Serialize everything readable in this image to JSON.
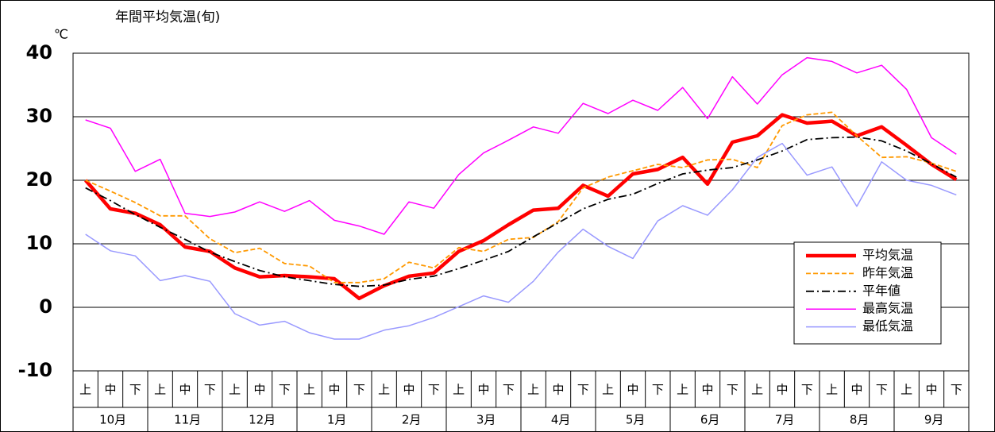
{
  "chart_data": {
    "type": "line",
    "title": "年間平均気温(旬)",
    "y_unit": "℃",
    "categories": [
      "上",
      "中",
      "下",
      "上",
      "中",
      "下",
      "上",
      "中",
      "下",
      "上",
      "中",
      "下",
      "上",
      "中",
      "下",
      "上",
      "中",
      "下",
      "上",
      "中",
      "下",
      "上",
      "中",
      "下",
      "上",
      "中",
      "下",
      "上",
      "中",
      "下",
      "上",
      "中",
      "下",
      "上",
      "中",
      "下"
    ],
    "groups": [
      "10月",
      "11月",
      "12月",
      "1月",
      "2月",
      "3月",
      "4月",
      "5月",
      "6月",
      "7月",
      "8月",
      "9月"
    ],
    "ylim": [
      -10,
      40
    ],
    "yticks": [
      -10,
      0,
      10,
      20,
      30,
      40
    ],
    "grid": true,
    "legend": "lower right",
    "series": [
      {
        "name": "平均気温",
        "color": "#ff0000",
        "linewidth": 4.5,
        "dash": "solid",
        "values": [
          20,
          15.5,
          14.8,
          13,
          9.5,
          8.8,
          6.2,
          4.8,
          5,
          4.8,
          4.5,
          1.4,
          3.4,
          4.9,
          5.4,
          8.8,
          10.5,
          13,
          15.3,
          15.6,
          19.2,
          17.5,
          21,
          21.7,
          23.6,
          19.4,
          26,
          27,
          30.3,
          29,
          29.3,
          27,
          28.4,
          25.5,
          22.5,
          20.1
        ]
      },
      {
        "name": "昨年気温",
        "color": "#ff9900",
        "linewidth": 1.8,
        "dash": "dashed",
        "values": [
          20,
          18.3,
          16.5,
          14.4,
          14.4,
          10.8,
          8.6,
          9.3,
          6.9,
          6.5,
          3.9,
          3.9,
          4.5,
          7.1,
          6.2,
          9.4,
          8.8,
          10.7,
          11,
          13.5,
          18.8,
          20.5,
          21.5,
          22.5,
          22,
          23.2,
          23.3,
          22,
          28.6,
          30.3,
          30.7,
          27,
          23.6,
          23.7,
          22.7,
          21.4
        ]
      },
      {
        "name": "平年値",
        "color": "#000000",
        "linewidth": 1.8,
        "dash": "dashdot",
        "values": [
          18.8,
          16.8,
          14.6,
          12.6,
          10.7,
          8.7,
          7.2,
          5.8,
          4.8,
          4.2,
          3.6,
          3.3,
          3.5,
          4.4,
          4.9,
          6.1,
          7.4,
          8.8,
          11.1,
          13.3,
          15.5,
          17,
          17.8,
          19.5,
          21,
          21.6,
          22,
          23.2,
          24.6,
          26.4,
          26.7,
          26.8,
          26.2,
          24.6,
          22.6,
          20.5
        ]
      },
      {
        "name": "最高気温",
        "color": "#ff00ff",
        "linewidth": 1.5,
        "dash": "solid",
        "values": [
          29.5,
          28.2,
          21.4,
          23.3,
          14.8,
          14.3,
          15,
          16.6,
          15.1,
          16.8,
          13.7,
          12.8,
          11.5,
          16.6,
          15.6,
          20.9,
          24.3,
          26.3,
          28.4,
          27.4,
          32.1,
          30.5,
          32.6,
          31,
          34.6,
          29.7,
          36.3,
          32,
          36.6,
          39.3,
          38.7,
          36.9,
          38.1,
          34.3,
          26.7,
          24.1
        ]
      },
      {
        "name": "最低気温",
        "color": "#9999ff",
        "linewidth": 1.5,
        "dash": "solid",
        "values": [
          11.5,
          8.9,
          8.1,
          4.2,
          5,
          4.1,
          -1,
          -2.8,
          -2.2,
          -4,
          -5,
          -5,
          -3.6,
          -2.9,
          -1.6,
          0.1,
          1.8,
          0.8,
          4.1,
          8.7,
          12.3,
          9.6,
          7.7,
          13.6,
          16,
          14.5,
          18.5,
          23.6,
          25.8,
          20.8,
          22.1,
          15.9,
          22.9,
          20,
          19.2,
          17.7
        ]
      }
    ]
  }
}
